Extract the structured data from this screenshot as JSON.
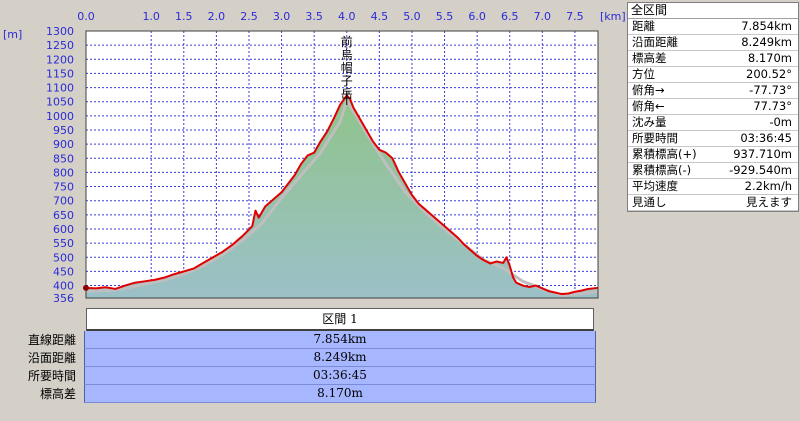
{
  "chart_data": {
    "type": "area",
    "xlabel": "[km]",
    "ylabel": "[m]",
    "xlim": [
      0,
      7.854
    ],
    "ylim": [
      356,
      1300
    ],
    "x_ticks": [
      "0.0",
      "1.0",
      "1.5",
      "2.0",
      "2.5",
      "3.0",
      "3.5",
      "4.0",
      "4.5",
      "5.0",
      "5.5",
      "6.0",
      "6.5",
      "7.0",
      "7.5"
    ],
    "x_tick_values": [
      0.0,
      1.0,
      1.5,
      2.0,
      2.5,
      3.0,
      3.5,
      4.0,
      4.5,
      5.0,
      5.5,
      6.0,
      6.5,
      7.0,
      7.5
    ],
    "y_ticks": [
      "1300",
      "1250",
      "1200",
      "1150",
      "1100",
      "1050",
      "1000",
      "950",
      "900",
      "850",
      "800",
      "750",
      "700",
      "650",
      "600",
      "550",
      "500",
      "450",
      "400",
      "356"
    ],
    "y_tick_values": [
      1300,
      1250,
      1200,
      1150,
      1100,
      1050,
      1000,
      950,
      900,
      850,
      800,
      750,
      700,
      650,
      600,
      550,
      500,
      450,
      400,
      356
    ],
    "grid": true,
    "peak_label": "前烏帽子岳",
    "peak_x": 4.0,
    "series": [
      {
        "color": "#e00000",
        "x": [
          0.0,
          0.15,
          0.3,
          0.45,
          0.6,
          0.75,
          0.9,
          1.05,
          1.2,
          1.35,
          1.5,
          1.65,
          1.8,
          1.95,
          2.1,
          2.25,
          2.4,
          2.55,
          2.6,
          2.65,
          2.75,
          2.85,
          3.0,
          3.1,
          3.2,
          3.3,
          3.4,
          3.5,
          3.6,
          3.7,
          3.8,
          3.9,
          4.0,
          4.05,
          4.1,
          4.2,
          4.3,
          4.4,
          4.5,
          4.6,
          4.7,
          4.8,
          4.9,
          5.0,
          5.1,
          5.2,
          5.3,
          5.4,
          5.5,
          5.6,
          5.7,
          5.8,
          5.9,
          6.0,
          6.1,
          6.2,
          6.3,
          6.4,
          6.45,
          6.5,
          6.55,
          6.6,
          6.7,
          6.8,
          6.9,
          7.0,
          7.1,
          7.2,
          7.3,
          7.4,
          7.5,
          7.6,
          7.7,
          7.854
        ],
        "values": [
          392,
          390,
          394,
          388,
          400,
          410,
          415,
          420,
          428,
          440,
          450,
          460,
          480,
          500,
          520,
          545,
          575,
          610,
          665,
          640,
          680,
          700,
          730,
          760,
          790,
          830,
          860,
          870,
          910,
          945,
          990,
          1040,
          1072,
          1060,
          1030,
          990,
          950,
          910,
          880,
          870,
          850,
          800,
          760,
          720,
          690,
          670,
          650,
          630,
          610,
          590,
          570,
          545,
          525,
          505,
          490,
          478,
          485,
          480,
          500,
          470,
          430,
          410,
          400,
          395,
          400,
          390,
          380,
          375,
          370,
          372,
          378,
          382,
          388,
          392
        ]
      },
      {
        "color": "#bfbfbf",
        "x": [
          0.0,
          0.3,
          0.6,
          0.9,
          1.2,
          1.5,
          1.8,
          2.1,
          2.4,
          2.7,
          3.0,
          3.3,
          3.6,
          3.9,
          4.0,
          4.3,
          4.6,
          4.9,
          5.2,
          5.5,
          5.8,
          6.1,
          6.4,
          6.7,
          7.0,
          7.3,
          7.6,
          7.854
        ],
        "values": [
          380,
          382,
          390,
          405,
          420,
          440,
          470,
          510,
          560,
          620,
          710,
          790,
          870,
          980,
          1055,
          940,
          830,
          730,
          660,
          600,
          545,
          490,
          462,
          415,
          388,
          365,
          372,
          380
        ]
      }
    ]
  },
  "info_panel": {
    "title": "全区間",
    "rows": [
      {
        "key": "距離",
        "value": "7.854km"
      },
      {
        "key": "沿面距離",
        "value": "8.249km"
      },
      {
        "key": "標高差",
        "value": "8.170m"
      },
      {
        "key": "方位",
        "value": "200.52°"
      },
      {
        "key": "俯角→",
        "value": "-77.73°"
      },
      {
        "key": "俯角←",
        "value": "77.73°"
      },
      {
        "key": "沈み量",
        "value": "-0m"
      },
      {
        "key": "所要時間",
        "value": "03:36:45"
      },
      {
        "key": "累積標高(+)",
        "value": "937.710m"
      },
      {
        "key": "累積標高(-)",
        "value": "-929.540m"
      },
      {
        "key": "平均速度",
        "value": "2.2km/h"
      },
      {
        "key": "見通し",
        "value": "見えます"
      }
    ]
  },
  "section": {
    "label": "区間 1",
    "rows": [
      {
        "key": "直線距離",
        "value": "7.854km"
      },
      {
        "key": "沿面距離",
        "value": "8.249km"
      },
      {
        "key": "所要時間",
        "value": "03:36:45"
      },
      {
        "key": "標高差",
        "value": "8.170m"
      }
    ]
  }
}
